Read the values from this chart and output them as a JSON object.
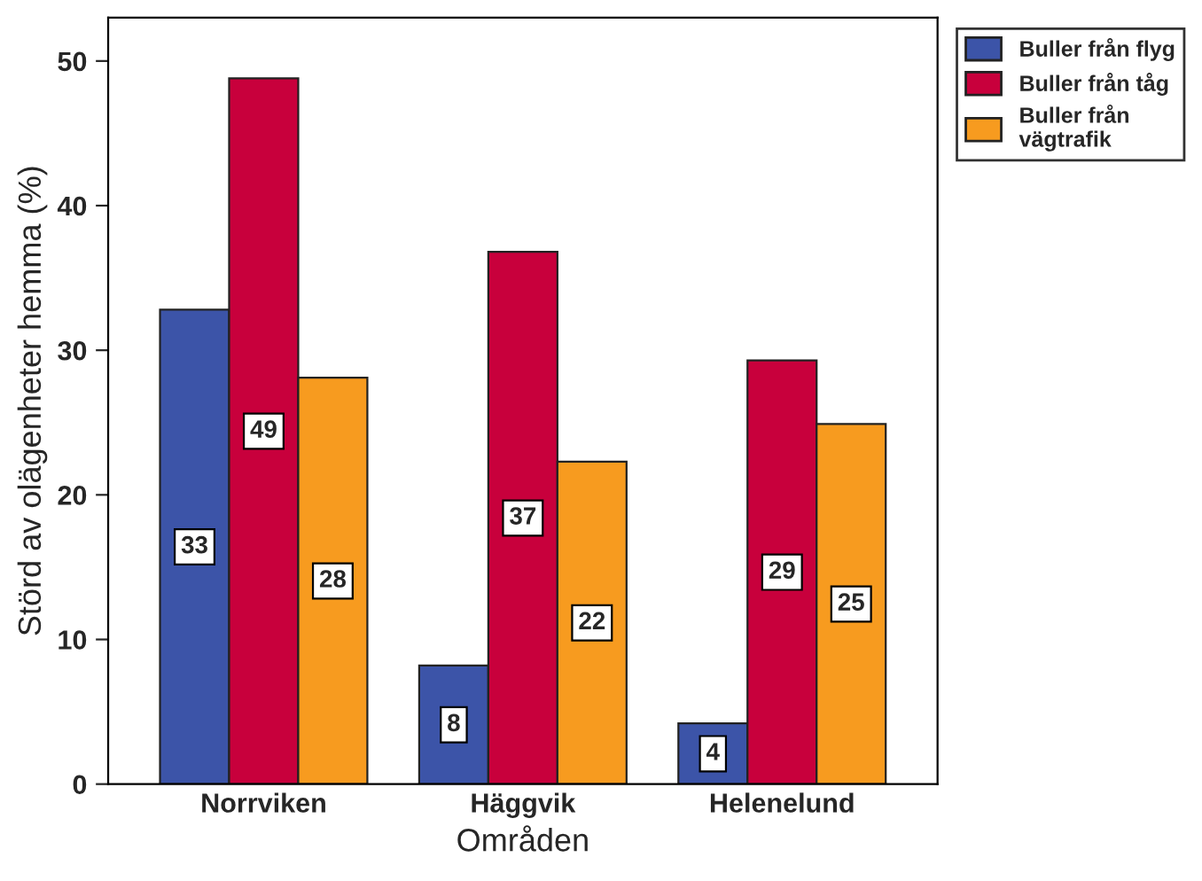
{
  "chart_data": {
    "type": "bar",
    "xlabel": "Områden",
    "ylabel": "Störd av olägenheter hemma (%)",
    "categories": [
      "Norrviken",
      "Häggvik",
      "Helenelund"
    ],
    "series": [
      {
        "name": "Buller från flyg",
        "color": "#3c54a8",
        "values": [
          32.8,
          8.2,
          4.2
        ],
        "value_labels": [
          "33",
          "8",
          "4"
        ]
      },
      {
        "name": "Buller från tåg",
        "color": "#c8003c",
        "values": [
          48.8,
          36.8,
          29.3
        ],
        "value_labels": [
          "49",
          "37",
          "29"
        ]
      },
      {
        "name": "Buller från\nvägtrafik",
        "color": "#f79b1f",
        "values": [
          28.1,
          22.3,
          24.9
        ],
        "value_labels": [
          "28",
          "22",
          "25"
        ]
      }
    ],
    "ylim": [
      0,
      53
    ],
    "yticks": [
      0,
      10,
      20,
      30,
      40,
      50
    ],
    "grid": false,
    "legend": "top right"
  }
}
